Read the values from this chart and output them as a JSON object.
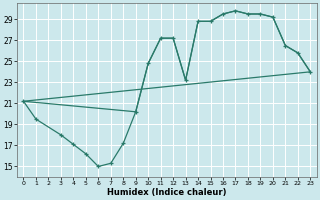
{
  "xlabel": "Humidex (Indice chaleur)",
  "bg_color": "#cce8ec",
  "line_color": "#2a7a6a",
  "grid_color": "#ffffff",
  "xlim": [
    -0.5,
    23.5
  ],
  "ylim": [
    14.0,
    30.5
  ],
  "yticks": [
    15,
    17,
    19,
    21,
    23,
    25,
    27,
    29
  ],
  "xticks": [
    0,
    1,
    2,
    3,
    4,
    5,
    6,
    7,
    8,
    9,
    10,
    11,
    12,
    13,
    14,
    15,
    16,
    17,
    18,
    19,
    20,
    21,
    22,
    23
  ],
  "main_x": [
    0,
    1,
    3,
    4,
    5,
    6,
    7,
    8,
    9,
    10,
    11,
    12,
    13,
    14,
    15,
    16,
    17,
    18,
    19,
    20,
    21,
    22,
    23
  ],
  "main_y": [
    21.2,
    19.5,
    18.0,
    17.1,
    16.2,
    15.0,
    15.3,
    17.2,
    20.2,
    24.8,
    27.2,
    27.2,
    23.2,
    28.8,
    28.8,
    29.5,
    29.8,
    29.5,
    29.5,
    29.2,
    26.5,
    25.8,
    24.0
  ],
  "trend_x": [
    0,
    23
  ],
  "trend_y": [
    21.2,
    24.0
  ],
  "env_x": [
    0,
    9,
    10,
    11,
    12,
    13,
    14,
    15,
    16,
    17,
    18,
    19,
    20,
    21,
    22,
    23
  ],
  "env_y": [
    21.2,
    20.2,
    24.8,
    27.2,
    27.2,
    23.2,
    28.8,
    28.8,
    29.5,
    29.8,
    29.5,
    29.5,
    29.2,
    26.5,
    25.8,
    24.0
  ]
}
